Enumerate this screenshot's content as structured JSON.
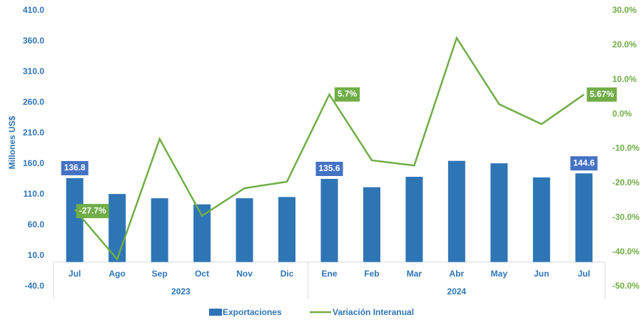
{
  "chart_data": {
    "type": "bar",
    "y_axis_label": "Millones US$",
    "categories": [
      "Jul",
      "Ago",
      "Sep",
      "Oct",
      "Nov",
      "Dic",
      "Ene",
      "Feb",
      "Mar",
      "Abr",
      "May",
      "Jun",
      "Jul"
    ],
    "category_groups": [
      {
        "label": "2023",
        "count": 6
      },
      {
        "label": "2024",
        "count": 7
      }
    ],
    "series": [
      {
        "name": "Exportaciones",
        "type": "bar",
        "color": "#2e75b6",
        "label_color": "#4472c4",
        "values": [
          136.8,
          111,
          104,
          94,
          104,
          106,
          135.6,
          122,
          139,
          165,
          161,
          138,
          144.6
        ],
        "value_labels": [
          "136.8",
          null,
          null,
          null,
          null,
          null,
          "135.6",
          null,
          null,
          null,
          null,
          null,
          "144.6"
        ]
      },
      {
        "name": "Variación Interanual",
        "type": "line",
        "axis": "y2",
        "color": "#70ad47",
        "label_color": "#70ad47",
        "values": [
          -27.7,
          -42.1,
          -7.2,
          -29.5,
          -21.5,
          -19.6,
          5.7,
          -13.4,
          -14.9,
          22.1,
          2.9,
          -2.9,
          5.67
        ],
        "value_labels": [
          "-27.7%",
          null,
          null,
          null,
          null,
          null,
          "5.7%",
          null,
          null,
          null,
          null,
          null,
          "5.67%"
        ]
      }
    ],
    "ylim": [
      -40,
      410
    ],
    "yticks": [
      {
        "value": -40,
        "label": "-40.0"
      },
      {
        "value": 10,
        "label": "10.0"
      },
      {
        "value": 60,
        "label": "60.0"
      },
      {
        "value": 110,
        "label": "110.0"
      },
      {
        "value": 160,
        "label": "160.0"
      },
      {
        "value": 210,
        "label": "210.0"
      },
      {
        "value": 260,
        "label": "260.0"
      },
      {
        "value": 310,
        "label": "310.0"
      },
      {
        "value": 360,
        "label": "360.0"
      },
      {
        "value": 410,
        "label": "410.0"
      }
    ],
    "y2lim": [
      -50,
      30
    ],
    "y2ticks": [
      {
        "value": -50,
        "label": "-50.0%"
      },
      {
        "value": -40,
        "label": "-40.0%"
      },
      {
        "value": -30,
        "label": "-30.0%"
      },
      {
        "value": -20,
        "label": "-20.0%"
      },
      {
        "value": -10,
        "label": "-10.0%"
      },
      {
        "value": 0,
        "label": "0.0%"
      },
      {
        "value": 10,
        "label": "10.0%"
      },
      {
        "value": 20,
        "label": "20.0%"
      },
      {
        "value": 30,
        "label": "30.0%"
      }
    ],
    "grid": false,
    "legend": "bottom"
  }
}
